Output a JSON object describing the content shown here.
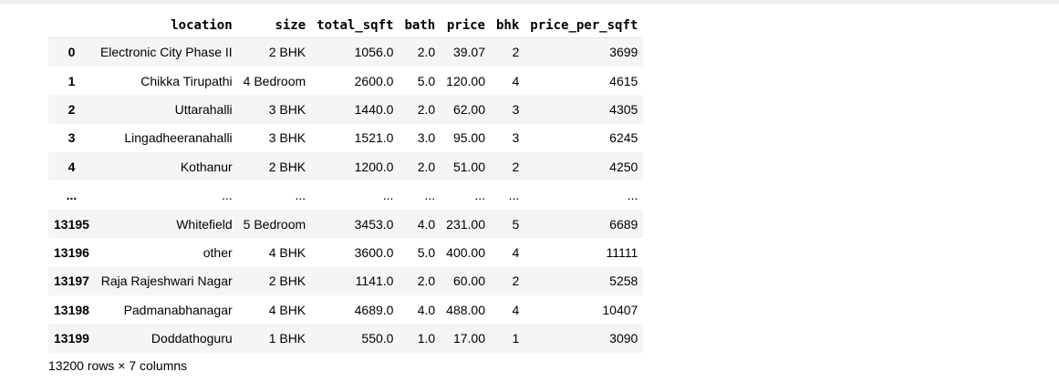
{
  "table": {
    "columns": [
      "",
      "location",
      "size",
      "total_sqft",
      "bath",
      "price",
      "bhk",
      "price_per_sqft"
    ],
    "rows": [
      [
        "0",
        "Electronic City Phase II",
        "2 BHK",
        "1056.0",
        "2.0",
        "39.07",
        "2",
        "3699"
      ],
      [
        "1",
        "Chikka Tirupathi",
        "4 Bedroom",
        "2600.0",
        "5.0",
        "120.00",
        "4",
        "4615"
      ],
      [
        "2",
        "Uttarahalli",
        "3 BHK",
        "1440.0",
        "2.0",
        "62.00",
        "3",
        "4305"
      ],
      [
        "3",
        "Lingadheeranahalli",
        "3 BHK",
        "1521.0",
        "3.0",
        "95.00",
        "3",
        "6245"
      ],
      [
        "4",
        "Kothanur",
        "2 BHK",
        "1200.0",
        "2.0",
        "51.00",
        "2",
        "4250"
      ],
      [
        "...",
        "...",
        "...",
        "...",
        "...",
        "...",
        "...",
        "..."
      ],
      [
        "13195",
        "Whitefield",
        "5 Bedroom",
        "3453.0",
        "4.0",
        "231.00",
        "5",
        "6689"
      ],
      [
        "13196",
        "other",
        "4 BHK",
        "3600.0",
        "5.0",
        "400.00",
        "4",
        "11111"
      ],
      [
        "13197",
        "Raja Rajeshwari Nagar",
        "2 BHK",
        "1141.0",
        "2.0",
        "60.00",
        "2",
        "5258"
      ],
      [
        "13198",
        "Padmanabhanagar",
        "4 BHK",
        "4689.0",
        "4.0",
        "488.00",
        "4",
        "10407"
      ],
      [
        "13199",
        "Doddathoguru",
        "1 BHK",
        "550.0",
        "1.0",
        "17.00",
        "1",
        "3090"
      ]
    ]
  },
  "footer": "13200 rows × 7 columns"
}
